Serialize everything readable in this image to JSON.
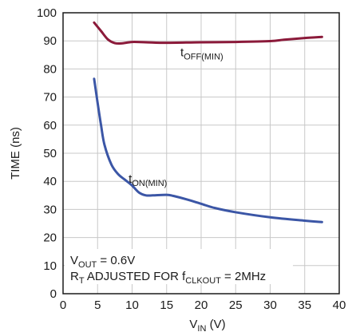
{
  "chart_data": {
    "type": "line",
    "title": "",
    "xlabel": {
      "main": "V",
      "sub": "IN",
      "unit": " (V)"
    },
    "ylabel": "TIME (ns)",
    "xlim": [
      0,
      40
    ],
    "ylim": [
      0,
      100
    ],
    "x_ticks": [
      "0",
      "5",
      "10",
      "15",
      "20",
      "25",
      "30",
      "35",
      "40"
    ],
    "y_ticks": [
      "0",
      "10",
      "20",
      "30",
      "40",
      "50",
      "60",
      "70",
      "80",
      "90",
      "100"
    ],
    "grid": true,
    "series": [
      {
        "name": "tOFF(MIN)",
        "label_main": "t",
        "label_sub": "OFF(MIN)",
        "color": "#8b1a3a",
        "label_at": [
          17,
          84.5
        ],
        "x": [
          4.5,
          5.5,
          6.5,
          7.5,
          8.5,
          10,
          12,
          15,
          20,
          25,
          30,
          32,
          35,
          37.5
        ],
        "y": [
          96.5,
          93.5,
          90.5,
          89.2,
          89.1,
          89.6,
          89.5,
          89.3,
          89.5,
          89.6,
          89.9,
          90.4,
          91.0,
          91.4
        ]
      },
      {
        "name": "tON(MIN)",
        "label_main": "t",
        "label_sub": "ON(MIN)",
        "color": "#3b56a6",
        "label_at": [
          9.5,
          39.5
        ],
        "x": [
          4.5,
          5,
          5.5,
          6,
          7,
          8,
          9,
          10,
          11,
          12,
          13,
          15,
          16,
          18,
          20,
          22,
          25,
          30,
          35,
          37.5
        ],
        "y": [
          76.5,
          68,
          60,
          53,
          46,
          42.5,
          40.5,
          38.5,
          36,
          35,
          35,
          35.2,
          34.8,
          33.5,
          32,
          30.5,
          29,
          27.2,
          26,
          25.5
        ]
      }
    ],
    "annotations": [
      {
        "parts": [
          {
            "t": "V"
          },
          {
            "t": "OUT",
            "sub": true
          },
          {
            "t": " = 0.6V"
          }
        ]
      },
      {
        "parts": [
          {
            "t": "R"
          },
          {
            "t": "T",
            "sub": true
          },
          {
            "t": " ADJUSTED FOR f"
          },
          {
            "t": "CLKOUT",
            "sub": true
          },
          {
            "t": " = 2MHz"
          }
        ]
      }
    ]
  }
}
